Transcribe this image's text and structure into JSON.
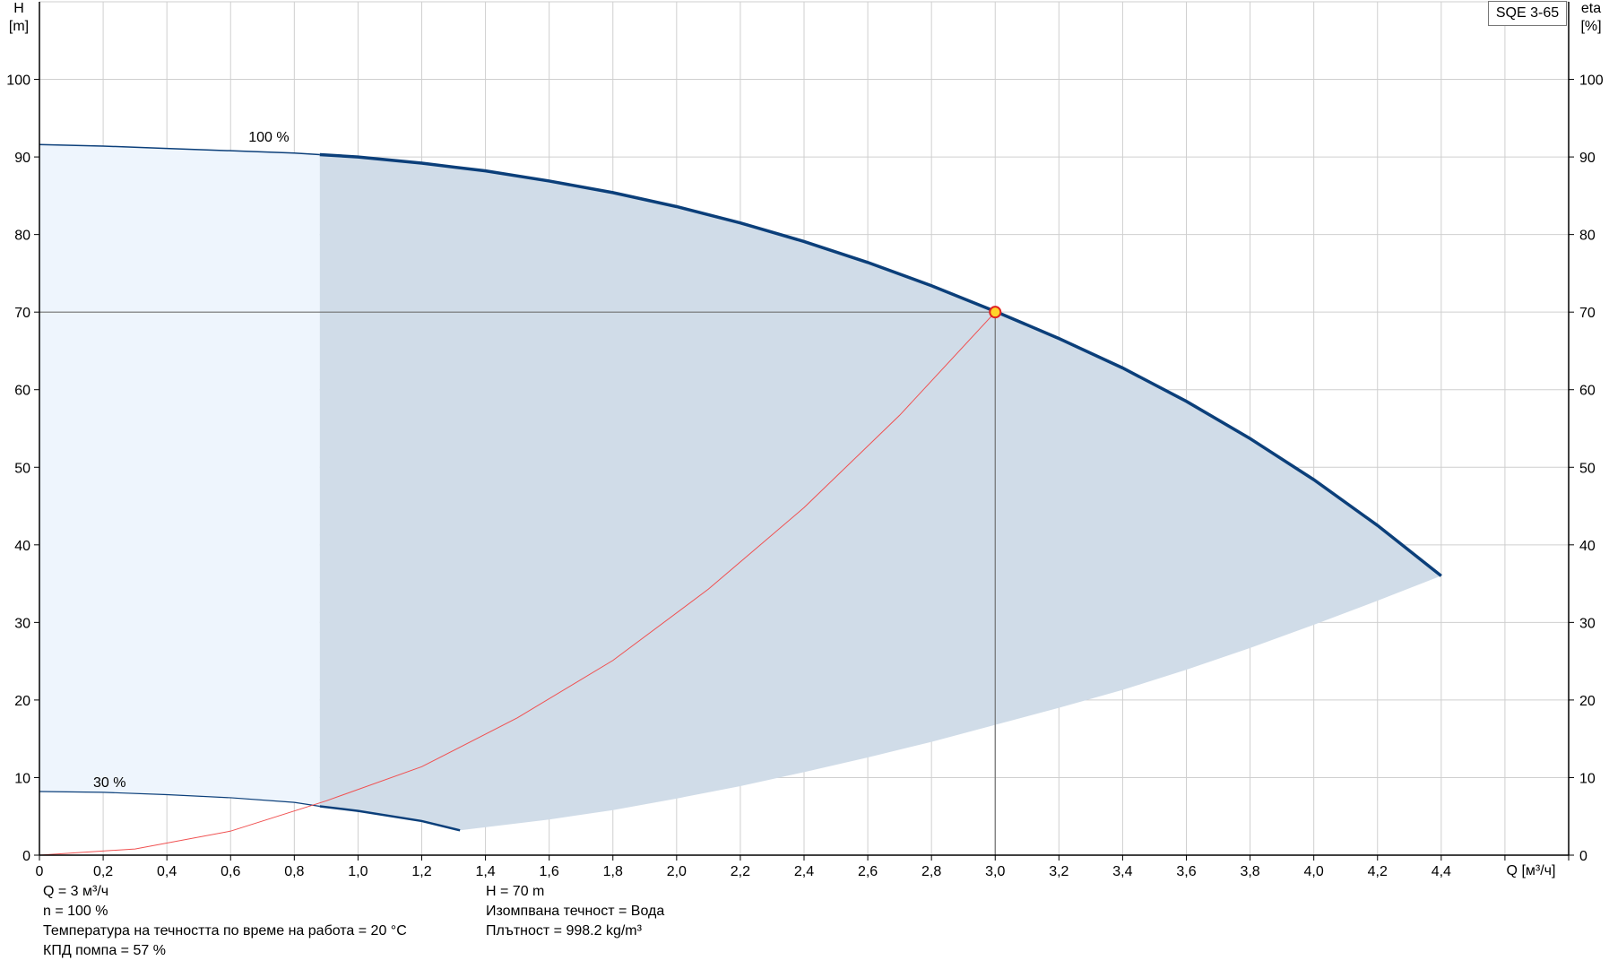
{
  "model": "SQE 3-65",
  "y_axis_left": {
    "label_line1": "H",
    "label_line2": "[m]"
  },
  "y_axis_right": {
    "label_line1": "eta",
    "label_line2": "[%]"
  },
  "x_axis": {
    "label": "Q [м³/ч]"
  },
  "colors": {
    "curve": "#0b3f7a",
    "band_fill": "#d0dce8",
    "low_band_fill": "#eef5fd",
    "system_curve": "#f05050",
    "grid": "#cfcfcf",
    "op_marker_fill": "#ffd42a",
    "op_marker_stroke": "#e02020"
  },
  "info_left": [
    "Q = 3 м³/ч",
    "n = 100 %",
    "Температура на течността по време на работа = 20 °C",
    "КПД помпа = 57 %"
  ],
  "info_right": [
    "H = 70 m",
    "Изомпвана течност = Вода",
    "Плътност = 998.2 kg/m³"
  ],
  "chart_data": {
    "type": "line",
    "xlim": [
      0,
      4.8
    ],
    "ylim": [
      0,
      110
    ],
    "x_ticks": [
      0,
      0.2,
      0.4,
      0.6,
      0.8,
      1.0,
      1.2,
      1.4,
      1.6,
      1.8,
      2.0,
      2.2,
      2.4,
      2.6,
      2.8,
      3.0,
      3.2,
      3.4,
      3.6,
      3.8,
      4.0,
      4.2,
      4.4
    ],
    "x_tick_labels": [
      "0",
      "0,2",
      "0,4",
      "0,6",
      "0,8",
      "1,0",
      "1,2",
      "1,4",
      "1,6",
      "1,8",
      "2,0",
      "2,2",
      "2,4",
      "2,6",
      "2,8",
      "3,0",
      "3,2",
      "3,4",
      "3,6",
      "3,8",
      "4,0",
      "4,2",
      "4,4"
    ],
    "y_ticks": [
      0,
      10,
      20,
      30,
      40,
      50,
      60,
      70,
      80,
      90,
      100
    ],
    "y_tick_labels": [
      "0",
      "10",
      "20",
      "30",
      "40",
      "50",
      "60",
      "70",
      "80",
      "90",
      "100"
    ],
    "grid": true,
    "curve_labels": [
      {
        "text": "100 %",
        "x": 0.72,
        "y": 92
      },
      {
        "text": "30 %",
        "x": 0.22,
        "y": 8.8
      }
    ],
    "series": [
      {
        "role": "qh-100",
        "x": [
          0,
          0.2,
          0.4,
          0.6,
          0.8,
          0.88,
          1.0,
          1.2,
          1.4,
          1.6,
          1.8,
          2.0,
          2.2,
          2.4,
          2.6,
          2.8,
          3.0,
          3.2,
          3.4,
          3.6,
          3.8,
          4.0,
          4.2,
          4.4
        ],
        "y": [
          91.6,
          91.4,
          91.1,
          90.8,
          90.5,
          90.3,
          90.0,
          89.2,
          88.2,
          86.9,
          85.4,
          83.6,
          81.5,
          79.1,
          76.4,
          73.4,
          70.1,
          66.6,
          62.8,
          58.5,
          53.7,
          48.4,
          42.5,
          36.0
        ]
      },
      {
        "role": "qh-30",
        "x": [
          0,
          0.2,
          0.4,
          0.6,
          0.8,
          0.88,
          1.0,
          1.2,
          1.32
        ],
        "y": [
          8.2,
          8.1,
          7.8,
          7.4,
          6.8,
          6.3,
          5.7,
          4.4,
          3.2
        ]
      },
      {
        "role": "min-boundary",
        "x": [
          1.32,
          1.6,
          1.8,
          2.0,
          2.2,
          2.4,
          2.6,
          2.8,
          3.0,
          3.2,
          3.4,
          3.6,
          3.8,
          4.0,
          4.2,
          4.4
        ],
        "y": [
          3.2,
          4.6,
          5.8,
          7.3,
          8.9,
          10.7,
          12.6,
          14.6,
          16.8,
          19.0,
          21.3,
          23.9,
          26.7,
          29.7,
          32.8,
          36.0
        ]
      },
      {
        "role": "system-curve",
        "x": [
          0,
          0.3,
          0.6,
          0.9,
          1.2,
          1.5,
          1.8,
          2.1,
          2.4,
          2.7,
          3.0
        ],
        "y": [
          0,
          0.8,
          3.1,
          7.0,
          11.4,
          17.7,
          25.1,
          34.3,
          44.8,
          56.7,
          70.0
        ]
      }
    ],
    "operating_point": {
      "x": 3.0,
      "y": 70
    }
  }
}
